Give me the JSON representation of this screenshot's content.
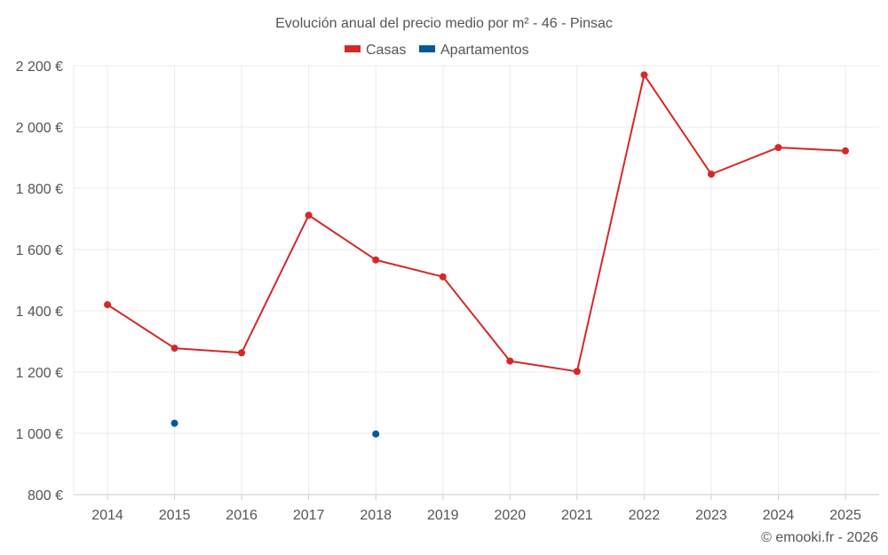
{
  "chart_data": {
    "type": "line",
    "title": "Evolución anual del precio medio por m² - 46 - Pinsac",
    "categories": [
      "2014",
      "2015",
      "2016",
      "2017",
      "2018",
      "2019",
      "2020",
      "2021",
      "2022",
      "2023",
      "2024",
      "2025"
    ],
    "series": [
      {
        "name": "Casas",
        "color": "#d62728",
        "values": [
          1420,
          1278,
          1263,
          1712,
          1566,
          1511,
          1236,
          1202,
          2170,
          1846,
          1933,
          1922
        ]
      },
      {
        "name": "Apartamentos",
        "color": "#005a9c",
        "values": [
          null,
          1033,
          null,
          null,
          998,
          null,
          null,
          null,
          null,
          null,
          null,
          null
        ]
      }
    ],
    "ylim": [
      800,
      2200
    ],
    "yticks": [
      800,
      1000,
      1200,
      1400,
      1600,
      1800,
      2000,
      2200
    ],
    "ytick_labels": [
      "800 €",
      "1 000 €",
      "1 200 €",
      "1 400 €",
      "1 600 €",
      "1 800 €",
      "2 000 €",
      "2 200 €"
    ],
    "xlabel": "",
    "ylabel": "",
    "grid": true,
    "legend_position": "top-center",
    "credit": "© emooki.fr - 2026"
  }
}
